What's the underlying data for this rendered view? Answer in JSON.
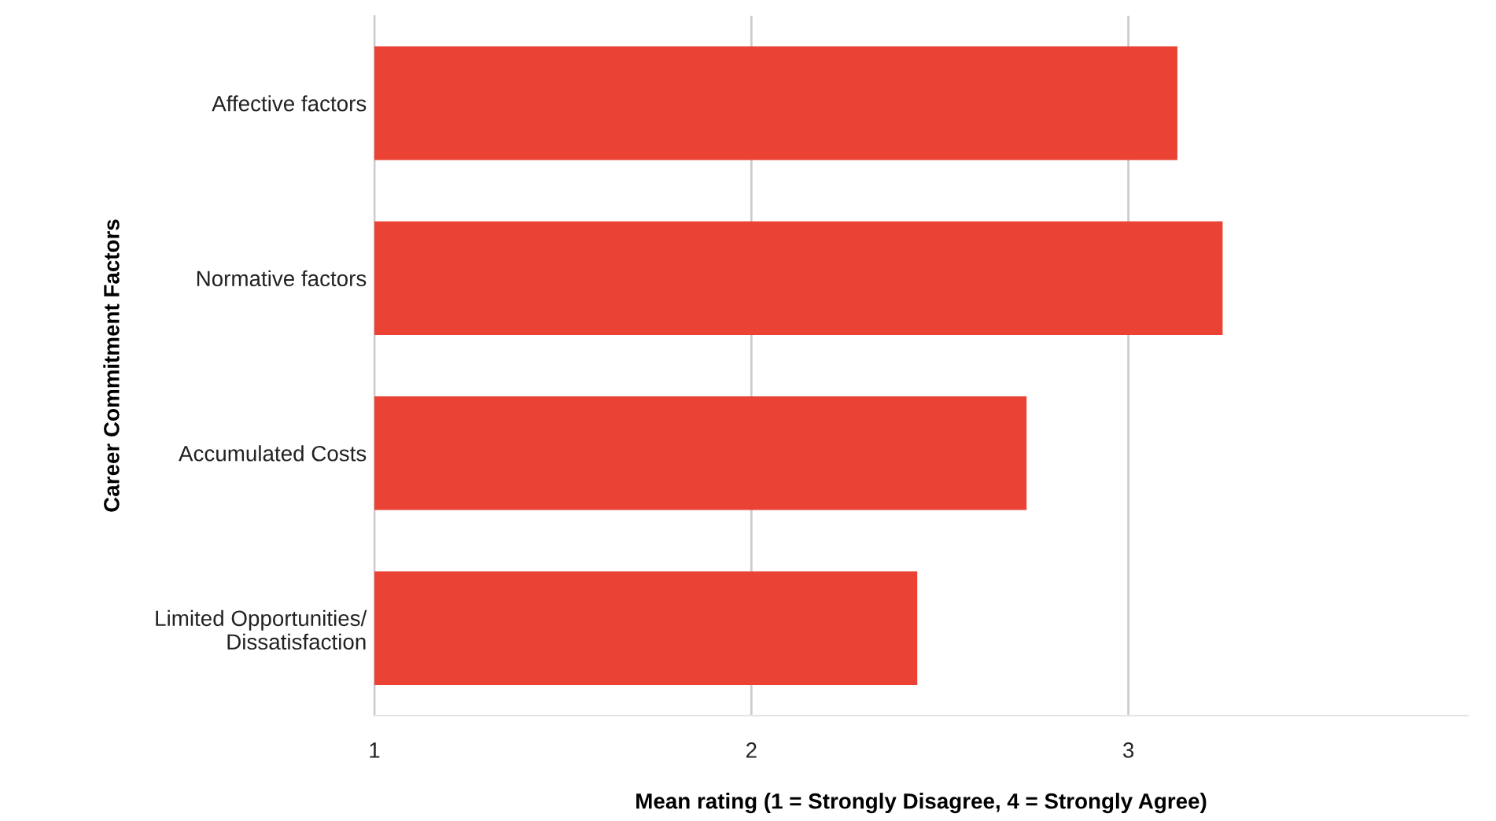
{
  "chart_data": {
    "type": "bar",
    "orientation": "horizontal",
    "xlabel": "Mean rating (1 = Strongly Disagree, 4 = Strongly Agree)",
    "ylabel": "Career Commitment Factors",
    "categories": [
      "Affective factors",
      "Normative factors",
      "Accumulated Costs",
      "Limited Opportunities/\nDissatisfaction"
    ],
    "values": [
      3.13,
      3.25,
      2.73,
      2.44
    ],
    "color": "#ea4335",
    "xlim": [
      1,
      3.9
    ],
    "xticks": [
      1,
      2,
      3
    ],
    "grid": "x"
  }
}
